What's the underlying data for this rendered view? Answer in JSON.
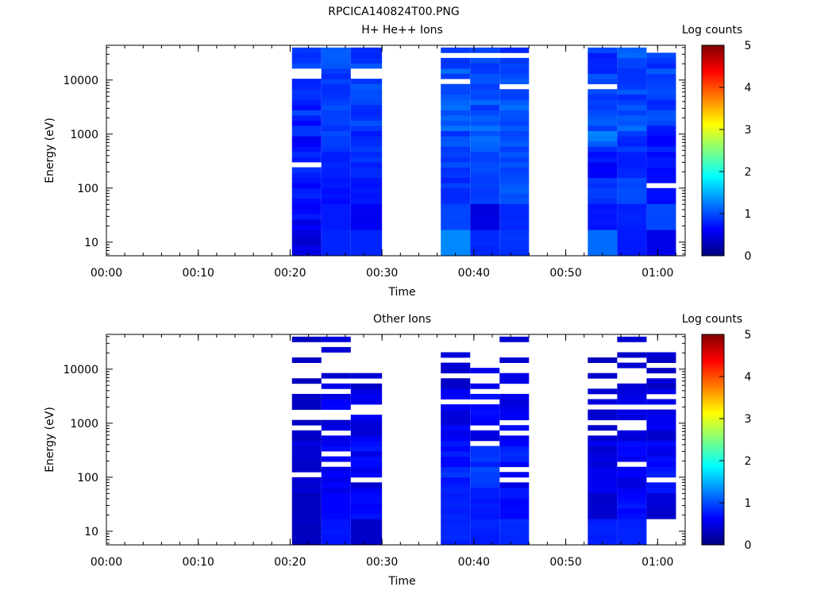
{
  "figure_title": "RPCICA140824T00.PNG",
  "colorscale": {
    "stops": [
      "#00007f",
      "#0000ff",
      "#007fff",
      "#00ffff",
      "#7fff7f",
      "#ffff00",
      "#ff7f00",
      "#ff0000",
      "#7f0000"
    ]
  },
  "chart_data": [
    {
      "type": "heatmap",
      "title": "H+ He++ Ions",
      "xlabel": "Time",
      "ylabel": "Energy (eV)",
      "y_scale": "log",
      "x_ticks": [
        "00:00",
        "00:10",
        "00:20",
        "00:30",
        "00:40",
        "00:50",
        "01:00"
      ],
      "x_tick_minutes": [
        0,
        10,
        20,
        30,
        40,
        50,
        60
      ],
      "xlim_minutes": [
        0,
        63
      ],
      "y_ticks": [
        "10",
        "100",
        "1000",
        "10000"
      ],
      "y_tick_values": [
        10,
        100,
        1000,
        10000
      ],
      "ylim": [
        5.6,
        44000
      ],
      "colorbar": {
        "label": "Log counts",
        "ticks": [
          "0",
          "1",
          "2",
          "3",
          "4",
          "5"
        ],
        "range": [
          0,
          5
        ]
      },
      "blocks": [
        {
          "t_start": 20.2,
          "t_end": 23.4,
          "low": [
            0.35,
            0.45,
            0.6,
            0.7,
            0.55,
            0.6,
            0.75,
            0.8
          ],
          "high": [
            0.65,
            0.8,
            0.85,
            0.95,
            0.9,
            1.0,
            0.95,
            1.0
          ],
          "gaps": [
            270,
            12000,
            15000
          ]
        },
        {
          "t_start": 23.4,
          "t_end": 26.6,
          "low": [
            0.8,
            0.75,
            0.6,
            0.75,
            0.8,
            0.85,
            0.8,
            0.85
          ],
          "high": [
            0.8,
            0.75,
            0.8,
            0.9,
            1.0,
            1.05,
            1.0,
            1.1
          ],
          "gaps": []
        },
        {
          "t_start": 26.6,
          "t_end": 30.0,
          "low": [
            0.8,
            0.55,
            0.7,
            0.75,
            0.7,
            0.8,
            0.8,
            0.8
          ],
          "high": [
            0.8,
            0.6,
            0.75,
            0.9,
            0.95,
            1.05,
            1.1,
            1.1
          ],
          "gaps": [
            11000,
            14000
          ]
        },
        {
          "t_start": 36.4,
          "t_end": 39.6,
          "low": [
            1.3,
            0.95,
            0.75,
            0.85,
            0.85,
            0.9,
            0.9,
            0.85
          ],
          "high": [
            1.3,
            1.0,
            1.0,
            1.1,
            1.3,
            1.2,
            1.15,
            1.2
          ],
          "gaps": [
            30000,
            9500
          ]
        },
        {
          "t_start": 39.6,
          "t_end": 42.8,
          "low": [
            0.8,
            0.45,
            0.85,
            0.9,
            0.8,
            0.85,
            0.8,
            0.75
          ],
          "high": [
            0.85,
            0.5,
            0.95,
            1.0,
            1.2,
            1.15,
            1.1,
            1.05
          ],
          "gaps": [
            30000
          ]
        },
        {
          "t_start": 42.8,
          "t_end": 46.0,
          "low": [
            0.85,
            0.8,
            1.0,
            0.9,
            0.85,
            0.9,
            0.9,
            0.8
          ],
          "high": [
            0.9,
            0.85,
            1.1,
            1.1,
            1.1,
            1.2,
            1.25,
            1.1
          ],
          "gaps": [
            28000,
            8000
          ]
        },
        {
          "t_start": 52.4,
          "t_end": 55.6,
          "low": [
            1.15,
            0.7,
            0.85,
            0.5,
            0.7,
            0.9,
            0.85,
            0.7
          ],
          "high": [
            1.15,
            0.8,
            0.95,
            0.85,
            1.3,
            1.1,
            1.05,
            1.0
          ],
          "gaps": [
            8000
          ]
        },
        {
          "t_start": 55.6,
          "t_end": 58.8,
          "low": [
            0.75,
            0.75,
            0.95,
            0.65,
            0.75,
            0.8,
            0.8,
            0.85
          ],
          "high": [
            0.75,
            0.8,
            1.05,
            0.85,
            1.2,
            1.1,
            1.1,
            1.15
          ],
          "gaps": []
        },
        {
          "t_start": 58.8,
          "t_end": 62.0,
          "low": [
            0.5,
            0.95,
            0.65,
            0.65,
            0.6,
            0.8,
            0.75,
            0.8
          ],
          "high": [
            0.55,
            1.0,
            0.7,
            0.85,
            0.95,
            1.05,
            1.0,
            1.1
          ],
          "gaps": [
            115,
            35000
          ]
        }
      ]
    },
    {
      "type": "heatmap",
      "title": "Other Ions",
      "xlabel": "Time",
      "ylabel": "Energy (eV)",
      "y_scale": "log",
      "x_ticks": [
        "00:00",
        "00:10",
        "00:20",
        "00:30",
        "00:40",
        "00:50",
        "01:00"
      ],
      "x_tick_minutes": [
        0,
        10,
        20,
        30,
        40,
        50,
        60
      ],
      "xlim_minutes": [
        0,
        63
      ],
      "y_ticks": [
        "10",
        "100",
        "1000",
        "10000"
      ],
      "y_tick_values": [
        10,
        100,
        1000,
        10000
      ],
      "ylim": [
        5.6,
        44000
      ],
      "colorbar": {
        "label": "Log counts",
        "ticks": [
          "0",
          "1",
          "2",
          "3",
          "4",
          "5"
        ],
        "range": [
          0,
          5
        ]
      },
      "blocks": [
        {
          "t_start": 20.2,
          "t_end": 23.4,
          "low": [
            0.3,
            0.3,
            0.35,
            0.3,
            0.3,
            0.3,
            0.3,
            0.3
          ],
          "high": [
            0.35,
            0.35,
            0.6,
            0.5,
            0.55,
            0.5,
            0.4,
            0.4
          ],
          "gaps": [
            120,
            800,
            1300,
            1700,
            3500,
            4800,
            7500,
            9500,
            12000,
            17000,
            22000,
            26000,
            30000
          ]
        },
        {
          "t_start": 23.4,
          "t_end": 26.6,
          "low": [
            0.7,
            0.6,
            0.45,
            0.5,
            0.35,
            0.45,
            0.35,
            0.35
          ],
          "high": [
            0.75,
            0.65,
            0.7,
            0.7,
            0.7,
            0.7,
            0.6,
            0.5
          ],
          "gaps": [
            180,
            300,
            600,
            1200,
            1600,
            4000,
            6000,
            8500,
            11000,
            15000,
            20000,
            32000
          ]
        },
        {
          "t_start": 26.6,
          "t_end": 30.0,
          "low": [
            0.35,
            0.6,
            0.4,
            0.45,
            0.35,
            0.4,
            0.3,
            0.3
          ],
          "high": [
            0.4,
            0.75,
            0.7,
            0.75,
            0.6,
            0.6,
            0.45,
            0.35
          ],
          "gaps": [
            90,
            1500,
            2000,
            6000,
            9000,
            12500,
            16000,
            19000,
            25000,
            30000,
            37000
          ]
        },
        {
          "t_start": 36.4,
          "t_end": 39.6,
          "low": [
            0.75,
            0.75,
            0.7,
            0.6,
            0.4,
            0.45,
            0.35,
            0.3
          ],
          "high": [
            0.85,
            0.85,
            0.9,
            0.8,
            0.7,
            0.65,
            0.55,
            0.45
          ],
          "gaps": [
            2700,
            8000,
            16000,
            22000,
            28000,
            32000,
            39000
          ]
        },
        {
          "t_start": 39.6,
          "t_end": 42.8,
          "low": [
            0.75,
            0.7,
            0.75,
            0.7,
            0.45,
            0.5,
            0.35,
            0.3
          ],
          "high": [
            0.85,
            0.85,
            1.0,
            0.95,
            0.85,
            0.75,
            0.55,
            0.45
          ],
          "gaps": [
            450,
            900,
            2600,
            3700,
            5500,
            8000,
            11000,
            14000,
            18000,
            24000,
            30000,
            36000
          ]
        },
        {
          "t_start": 42.8,
          "t_end": 46.0,
          "low": [
            0.8,
            0.6,
            0.5,
            0.55,
            0.45,
            0.4,
            0.35,
            0.3
          ],
          "high": [
            0.85,
            0.75,
            0.75,
            0.85,
            0.75,
            0.6,
            0.55,
            0.45
          ],
          "gaps": [
            90,
            130,
            700,
            1100,
            3800,
            5000,
            9500,
            13000,
            17000,
            25000,
            31000
          ]
        },
        {
          "t_start": 52.4,
          "t_end": 55.6,
          "low": [
            0.75,
            0.35,
            0.5,
            0.35,
            0.35,
            0.35,
            0.3,
            0.3
          ],
          "high": [
            0.8,
            0.45,
            0.75,
            0.65,
            0.65,
            0.55,
            0.45,
            0.4
          ],
          "gaps": [
            700,
            1000,
            2000,
            3200,
            4500,
            6500,
            10000,
            13000,
            17000,
            22000,
            29000,
            33000
          ]
        },
        {
          "t_start": 55.6,
          "t_end": 58.8,
          "low": [
            0.75,
            0.6,
            0.45,
            0.5,
            0.35,
            0.4,
            0.3,
            0.3
          ],
          "high": [
            0.8,
            0.75,
            0.7,
            0.7,
            0.55,
            0.55,
            0.45,
            0.4
          ],
          "gaps": [
            180,
            850,
            1100,
            2200,
            5500,
            7000,
            9000,
            15500,
            22000,
            30000
          ]
        },
        {
          "t_start": 58.8,
          "t_end": 62.0,
          "low": [
            0.0,
            0.35,
            0.7,
            0.5,
            0.35,
            0.4,
            0.3,
            0.3
          ],
          "high": [
            0.0,
            0.45,
            0.8,
            0.7,
            0.6,
            0.6,
            0.5,
            0.45
          ],
          "gaps": [
            90,
            1900,
            3200,
            8000,
            12000,
            21000,
            27000,
            33000
          ]
        }
      ]
    }
  ]
}
